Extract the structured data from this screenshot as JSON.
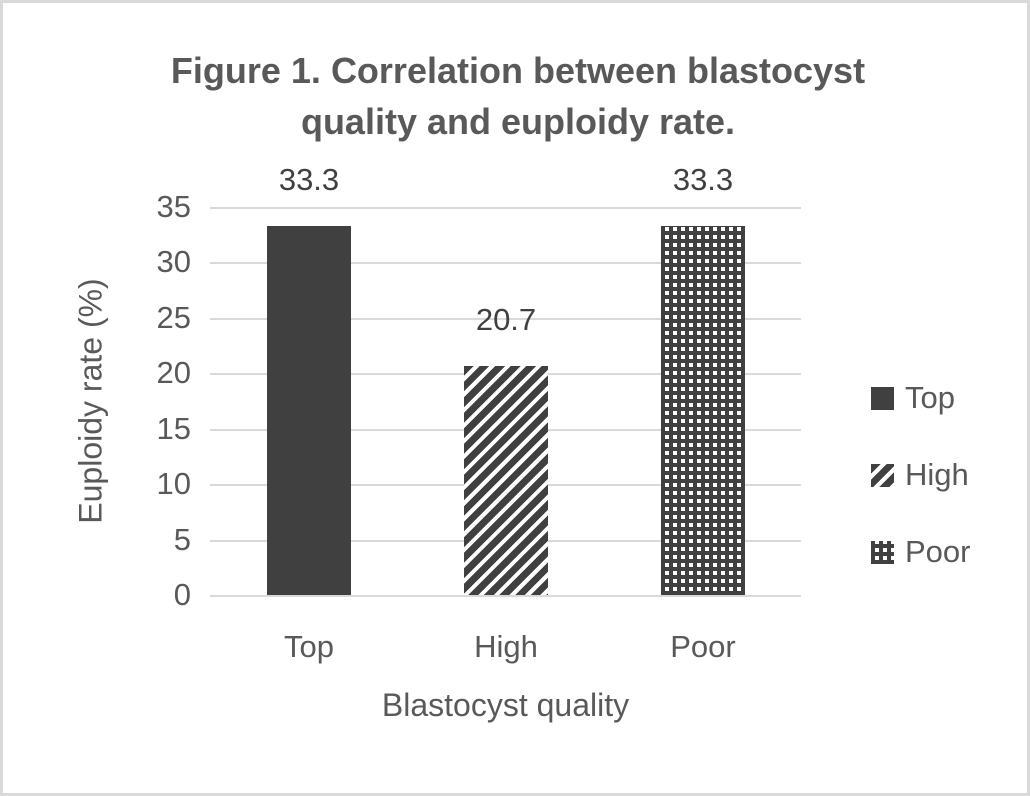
{
  "chart_data": {
    "type": "bar",
    "title": "Figure 1. Correlation between blastocyst quality and euploidy rate.",
    "xlabel": "Blastocyst quality",
    "ylabel": "Euploidy rate (%)",
    "categories": [
      "Top",
      "High",
      "Poor"
    ],
    "values": [
      33.3,
      20.7,
      33.3
    ],
    "data_labels": [
      "33.3",
      "20.7",
      "33.3"
    ],
    "ylim": [
      0,
      35
    ],
    "y_tick_step": 5,
    "y_ticks": [
      "35",
      "30",
      "25",
      "20",
      "15",
      "10",
      "5",
      "0"
    ],
    "grid": true,
    "legend": {
      "position": "right",
      "entries": [
        {
          "label": "Top",
          "pattern": "solid"
        },
        {
          "label": "High",
          "pattern": "diagonal-stripes"
        },
        {
          "label": "Poor",
          "pattern": "checkerboard"
        }
      ]
    },
    "colors": {
      "series_fill": "#404040",
      "gridline": "#d9d9d9",
      "frame_border": "#d9d9d9",
      "axis_text": "#595959",
      "title_text": "#595959",
      "data_label_text": "#404040",
      "background": "#ffffff"
    }
  }
}
